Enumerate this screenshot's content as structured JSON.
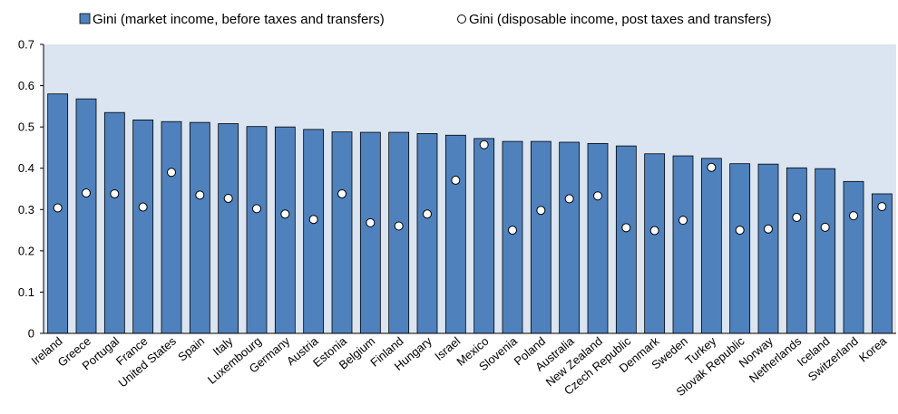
{
  "chart_data": {
    "type": "bar",
    "legend": {
      "position": "top",
      "items": [
        {
          "marker": "bar",
          "label": "Gini (market income, before taxes and transfers)"
        },
        {
          "marker": "point",
          "label": "Gini (disposable income, post taxes and transfers)"
        }
      ]
    },
    "categories": [
      "Ireland",
      "Greece",
      "Portugal",
      "France",
      "United States",
      "Spain",
      "Italy",
      "Luxembourg",
      "Germany",
      "Austria",
      "Estonia",
      "Belgium",
      "Finland",
      "Hungary",
      "Israel",
      "Mexico",
      "Slovenia",
      "Poland",
      "Australia",
      "New Zealand",
      "Czech Republic",
      "Denmark",
      "Sweden",
      "Turkey",
      "Slovak Republic",
      "Norway",
      "Netherlands",
      "Iceland",
      "Switzerland",
      "Korea"
    ],
    "series": [
      {
        "name": "Gini (market income, before taxes and transfers)",
        "kind": "bar",
        "values": [
          0.58,
          0.568,
          0.535,
          0.517,
          0.513,
          0.511,
          0.508,
          0.501,
          0.5,
          0.494,
          0.488,
          0.487,
          0.487,
          0.484,
          0.48,
          0.472,
          0.465,
          0.465,
          0.463,
          0.46,
          0.454,
          0.435,
          0.43,
          0.424,
          0.411,
          0.41,
          0.401,
          0.399,
          0.368,
          0.338
        ]
      },
      {
        "name": "Gini (disposable income, post taxes and transfers)",
        "kind": "point",
        "values": [
          0.304,
          0.34,
          0.338,
          0.306,
          0.39,
          0.335,
          0.327,
          0.302,
          0.289,
          0.276,
          0.338,
          0.268,
          0.26,
          0.289,
          0.371,
          0.457,
          0.25,
          0.298,
          0.326,
          0.333,
          0.256,
          0.249,
          0.274,
          0.402,
          0.25,
          0.253,
          0.281,
          0.257,
          0.285,
          0.307
        ]
      }
    ],
    "yticks": [
      "0",
      "0.1",
      "0.2",
      "0.3",
      "0.4",
      "0.5",
      "0.6",
      "0.7"
    ],
    "ylim": [
      0,
      0.7
    ],
    "grid": false,
    "colors": {
      "bar": "#4f81bd",
      "bar_stroke": "#000000",
      "plot_bg": "#dbe5f1",
      "point_fill": "#ffffff",
      "point_stroke": "#000000"
    }
  }
}
